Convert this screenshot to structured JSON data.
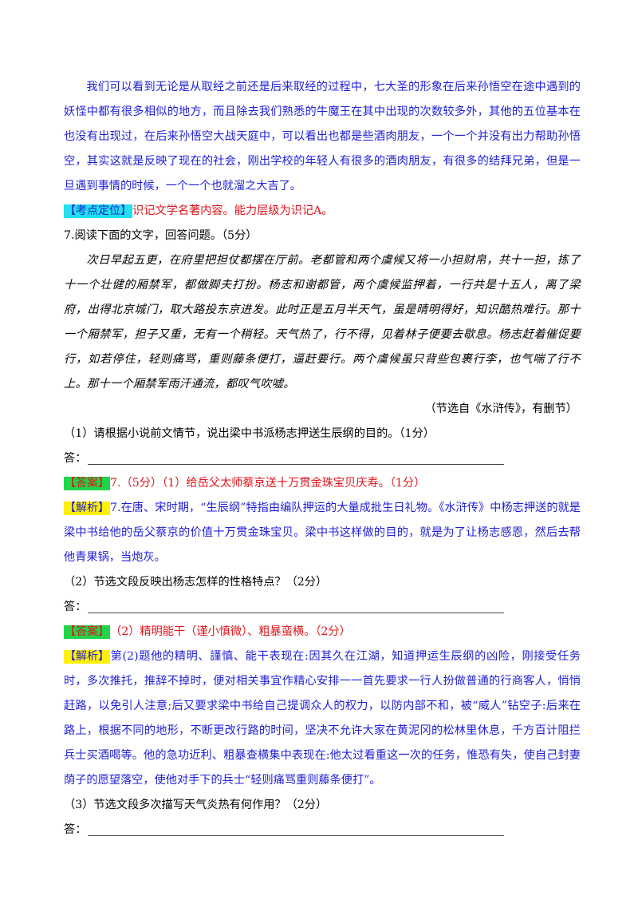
{
  "intro_paragraph": "我们可以看到无论是从取经之前还是后来取经的过程中，七大圣的形象在后来孙悟空在途中遇到的妖怪中都有很多相似的地方，而且除去我们熟悉的牛魔王在其中出现的次数较多外，其他的五位基本在也没有出现过，在后来孙悟空大战天庭中，可以看出也都是些酒肉朋友，一个一个并没有出力帮助孙悟空，其实这就是反映了现在的社会，刚出学校的年轻人有很多的酒肉朋友，有很多的结拜兄弟，但是一旦遇到事情的时候，一个一个也就溜之大吉了。",
  "kaodian": {
    "tag": "【考点定位】",
    "text": "识记文学名著内容。能力层级为识记A。"
  },
  "question7": {
    "title": "7.阅读下面的文字，回答问题。（5分）",
    "passage": "次日早起五更，在府里把担仗都摆在厅前。老都管和两个虞候又将一小担财帛，共十一担，拣了十一个壮健的厢禁军，都做脚夫打扮。杨志和谢都管，两个虞候监押着，一行共是十五人，离了梁府，出得北京城门，取大路投东京进发。此时正是五月半天气，虽是晴明得好，知识酷热难行。那十一个厢禁军，担子又重，无有一个稍轻。天气热了，行不得，见着林子便要去歇息。杨志赶着催促要行，如若停住，轻则痛骂，重则藤条便打，逼赶要行。两个虞候虽只背些包裹行李，也气喘了行不上。那十一个厢禁军雨汗通流，都叹气吹嘘。",
    "source": "（节选自《水浒传》，有删节）",
    "answer_prefix": "答：",
    "sub1": {
      "question": "（1）请根据小说前文情节，说出梁中书派杨志押送生辰纲的目的。（1分）",
      "answer_tag": "【答案】",
      "answer_text": "7.（5分）（1）给岳父太师蔡京送十万贯金珠宝贝庆寿。（1分）",
      "analysis_tag": "【解析】",
      "analysis_text": "7.在唐、宋时期，“生辰纲”特指由编队押运的大量成批生日礼物。《水浒传》中杨志押送的就是梁中书给他的岳父蔡京的价值十万贯金珠宝贝。梁中书这样做的目的，就是为了让杨志感恩，然后去帮他青果锅，当炮灰。"
    },
    "sub2": {
      "question": "（2）节选文段反映出杨志怎样的性格特点？（2分）",
      "answer_tag": "【答案】",
      "answer_text": "（2）精明能干（谨小慎微）、粗暴蛮横。（2分）",
      "analysis_tag": "【解析】",
      "analysis_text": "第(2)题他的精明、謹慎、能干表现在:因其久在江湖，知道押运生辰纲的凶险，刚接受任务时，多次推托，推辞不掉时，便对相关事宜作精心安排一一首先要求一行人扮做普通的行商客人，悄悄赶路，以免引人注意;后又要求梁中书给自己提调众人的权力，以防内部不和，被“威人”钻空子:后来在路上，根据不同的地形，不断更改行路的时间，坚决不允许大家在黄泥冈的松林里休息，千方百计阻拦兵士买酒喝等。他的急功近利、粗暴查横集中表现在:他太过看重这一次的任务，惟恐有失，使自己封妻荫子的愿望落空，使他对手下的兵士“轻则痛骂重则藤条便打”。"
    },
    "sub3": {
      "question": "（3）节选文段多次描写天气炎热有何作用？（2分）"
    }
  },
  "colors": {
    "blue_text": "#1f1fd8",
    "red_text": "#e0141b",
    "tag_cyan": "#22e0ee",
    "tag_green": "#1fd64a",
    "tag_yellow": "#fff000"
  }
}
